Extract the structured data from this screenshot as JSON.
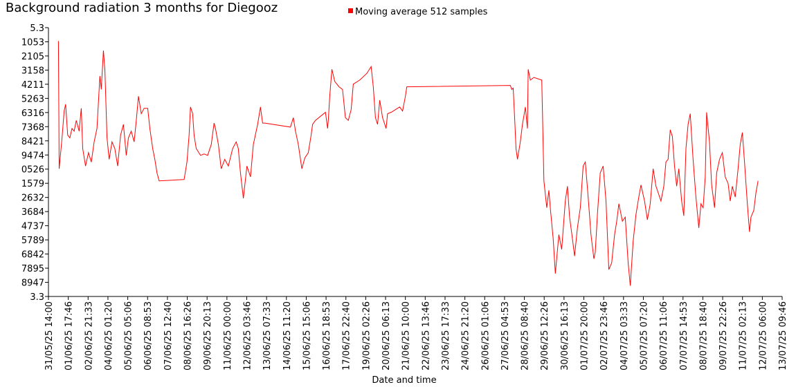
{
  "chart_data": {
    "type": "line",
    "title": "Background radiation 3 months for Diegooz",
    "xlabel": "Date and time",
    "legend": "top",
    "grid": false,
    "xlim": [
      "31/05/25 14:00",
      "13/07/25 09:46"
    ],
    "xticks": [
      "31/05/25 14:00",
      "01/06/25 17:46",
      "02/06/25 21:33",
      "04/06/25 01:20",
      "05/06/25 05:06",
      "06/06/25 08:53",
      "07/06/25 12:40",
      "08/06/25 16:26",
      "09/06/25 20:13",
      "11/06/25 00:00",
      "12/06/25 03:46",
      "13/06/25 07:33",
      "14/06/25 11:20",
      "15/06/25 15:06",
      "16/06/25 18:53",
      "17/06/25 22:40",
      "19/06/25 02:26",
      "20/06/25 06:13",
      "21/06/25 10:00",
      "22/06/25 13:46",
      "23/06/25 17:33",
      "24/06/25 21:20",
      "26/06/25 01:06",
      "27/06/25 04:53",
      "28/06/25 08:40",
      "29/06/25 12:26",
      "30/06/25 16:13",
      "01/07/25 20:00",
      "02/07/25 23:46",
      "04/07/25 03:33",
      "05/07/25 07:20",
      "06/07/25 11:06",
      "07/07/25 14:53",
      "08/07/25 18:40",
      "09/07/25 22:26",
      "11/07/25 02:13",
      "12/07/25 06:00",
      "13/07/25 09:46"
    ],
    "ylim": [
      3.3,
      5.3
    ],
    "yticks": [
      5.3,
      {
        "value": 5.194737,
        "label": "1053"
      },
      {
        "value": 5.089474,
        "label": "2105"
      },
      {
        "value": 4.984211,
        "label": "3158"
      },
      {
        "value": 4.878947,
        "label": "4211"
      },
      {
        "value": 4.773684,
        "label": "5263"
      },
      {
        "value": 4.668421,
        "label": "6316"
      },
      {
        "value": 4.563158,
        "label": "7368"
      },
      {
        "value": 4.457895,
        "label": "8421"
      },
      {
        "value": 4.352632,
        "label": "9474"
      },
      {
        "value": 4.247368,
        "label": "0526"
      },
      {
        "value": 4.142105,
        "label": "1579"
      },
      {
        "value": 4.036842,
        "label": "2632"
      },
      {
        "value": 3.931579,
        "label": "3684"
      },
      {
        "value": 3.826316,
        "label": "4737"
      },
      {
        "value": 3.721053,
        "label": "5789"
      },
      {
        "value": 3.615789,
        "label": "6842"
      },
      {
        "value": 3.510526,
        "label": "7895"
      },
      {
        "value": 3.405263,
        "label": "8947"
      },
      3.3
    ],
    "x": [
      "01/06/25 04:00",
      "01/06/25 05:00",
      "01/06/25 09:00",
      "01/06/25 12:00",
      "01/06/25 14:00",
      "01/06/25 17:00",
      "01/06/25 20:00",
      "01/06/25 23:00",
      "02/06/25 02:00",
      "02/06/25 05:00",
      "02/06/25 09:00",
      "02/06/25 12:00",
      "02/06/25 14:00",
      "02/06/25 18:00",
      "02/06/25 22:00",
      "03/06/25 02:00",
      "03/06/25 06:00",
      "03/06/25 10:00",
      "03/06/25 14:00",
      "03/06/25 16:00",
      "03/06/25 19:00",
      "03/06/25 21:00",
      "04/06/25 00:00",
      "04/06/25 03:00",
      "04/06/25 07:00",
      "04/06/25 11:00",
      "04/06/25 15:00",
      "04/06/25 19:00",
      "04/06/25 23:00",
      "05/06/25 03:00",
      "05/06/25 06:00",
      "05/06/25 10:00",
      "05/06/25 14:00",
      "05/06/25 17:00",
      "05/06/25 20:00",
      "06/06/25 00:00",
      "06/06/25 04:00",
      "06/06/25 09:00",
      "06/06/25 12:00",
      "06/06/25 16:00",
      "06/06/25 19:00",
      "06/06/25 22:00",
      "07/06/25 01:00",
      "08/06/25 12:00",
      "08/06/25 16:00",
      "08/06/25 19:00",
      "08/06/25 21:00",
      "09/06/25 00:00",
      "09/06/25 02:00",
      "09/06/25 05:00",
      "09/06/25 11:00",
      "09/06/25 16:00",
      "09/06/25 21:00",
      "10/06/25 02:00",
      "10/06/25 06:00",
      "10/06/25 08:00",
      "10/06/25 12:00",
      "10/06/25 16:00",
      "10/06/25 21:00",
      "11/06/25 02:00",
      "11/06/25 08:00",
      "11/06/25 13:00",
      "11/06/25 16:00",
      "11/06/25 19:00",
      "11/06/25 23:00",
      "12/06/25 04:00",
      "12/06/25 09:00",
      "12/06/25 13:00",
      "12/06/25 19:00",
      "12/06/25 23:00",
      "13/06/25 02:00",
      "13/06/25 05:00",
      "14/06/25 17:00",
      "14/06/25 21:00",
      "15/06/25 00:00",
      "15/06/25 04:00",
      "15/06/25 07:00",
      "15/06/25 09:00",
      "15/06/25 13:00",
      "15/06/25 18:00",
      "15/06/25 22:00",
      "16/06/25 00:00",
      "16/06/25 04:00",
      "16/06/25 18:00",
      "16/06/25 21:00",
      "16/06/25 22:00",
      "17/06/25 00:00",
      "17/06/25 03:00",
      "17/06/25 07:00",
      "17/06/25 13:00",
      "17/06/25 18:00",
      "17/06/25 22:00",
      "18/06/25 02:00",
      "18/06/25 06:00",
      "18/06/25 09:00",
      "18/06/25 18:00",
      "19/06/25 04:00",
      "19/06/25 10:00",
      "19/06/25 13:00",
      "19/06/25 16:00",
      "19/06/25 19:00",
      "19/06/25 22:00",
      "20/06/25 02:00",
      "20/06/25 07:00",
      "20/06/25 09:00",
      "20/06/25 14:00",
      "21/06/25 02:00",
      "21/06/25 06:00",
      "21/06/25 10:00",
      "21/06/25 12:00",
      "27/06/25 13:00",
      "27/06/25 15:00",
      "27/06/25 17:00",
      "27/06/25 19:00",
      "27/06/25 21:00",
      "27/06/25 23:00",
      "28/06/25 03:00",
      "28/06/25 06:00",
      "28/06/25 10:00",
      "28/06/25 13:00",
      "28/06/25 14:00",
      "28/06/25 17:00",
      "28/06/25 22:00",
      "29/06/25 09:00",
      "29/06/25 12:00",
      "29/06/25 16:00",
      "29/06/25 19:00",
      "29/06/25 21:00",
      "30/06/25 01:00",
      "30/06/25 04:00",
      "30/06/25 09:00",
      "30/06/25 13:00",
      "30/06/25 18:00",
      "30/06/25 21:00",
      "01/07/25 00:00",
      "01/07/25 04:00",
      "01/07/25 07:00",
      "01/07/25 11:00",
      "01/07/25 15:00",
      "01/07/25 19:00",
      "01/07/25 22:00",
      "02/07/25 02:00",
      "02/07/25 06:00",
      "02/07/25 10:00",
      "02/07/25 12:00",
      "02/07/25 15:00",
      "02/07/25 19:00",
      "02/07/25 23:00",
      "03/07/25 03:00",
      "03/07/25 07:00",
      "03/07/25 11:00",
      "03/07/25 15:00",
      "03/07/25 18:00",
      "03/07/25 21:00",
      "04/07/25 02:00",
      "04/07/25 06:00",
      "04/07/25 10:00",
      "04/07/25 13:00",
      "04/07/25 17:00",
      "04/07/25 21:00",
      "05/07/25 01:00",
      "05/07/25 04:00",
      "05/07/25 09:00",
      "05/07/25 13:00",
      "05/07/25 17:00",
      "05/07/25 21:00",
      "06/07/25 01:00",
      "06/07/25 08:00",
      "06/07/25 12:00",
      "06/07/25 15:00",
      "06/07/25 18:00",
      "06/07/25 21:00",
      "07/07/25 00:00",
      "07/07/25 03:00",
      "07/07/25 06:00",
      "07/07/25 09:00",
      "07/07/25 13:00",
      "07/07/25 16:00",
      "07/07/25 19:00",
      "07/07/25 22:00",
      "08/07/25 01:00",
      "08/07/25 05:00",
      "08/07/25 09:00",
      "08/07/25 13:00",
      "08/07/25 16:00",
      "08/07/25 19:00",
      "08/07/25 22:00",
      "09/07/25 00:00",
      "09/07/25 04:00",
      "09/07/25 07:00",
      "09/07/25 11:00",
      "09/07/25 14:00",
      "09/07/25 18:00",
      "09/07/25 22:00",
      "10/07/25 02:00",
      "10/07/25 06:00",
      "10/07/25 09:00",
      "10/07/25 12:00",
      "10/07/25 16:00",
      "10/07/25 20:00",
      "10/07/25 23:00",
      "11/07/25 02:00",
      "11/07/25 05:00",
      "11/07/25 09:00",
      "11/07/25 12:00",
      "11/07/25 14:00",
      "11/07/25 18:00",
      "11/07/25 21:00",
      "12/07/25 00:00"
    ],
    "series": [
      {
        "name": "Moving average 512 samples",
        "color": "#ff0000",
        "values": [
          5.2,
          4.25,
          4.48,
          4.68,
          4.73,
          4.5,
          4.48,
          4.55,
          4.53,
          4.61,
          4.53,
          4.7,
          4.4,
          4.27,
          4.37,
          4.3,
          4.45,
          4.55,
          4.94,
          4.84,
          5.13,
          4.99,
          4.48,
          4.32,
          4.45,
          4.4,
          4.27,
          4.5,
          4.58,
          4.35,
          4.48,
          4.53,
          4.45,
          4.61,
          4.79,
          4.66,
          4.7,
          4.7,
          4.55,
          4.4,
          4.32,
          4.22,
          4.16,
          4.17,
          4.3,
          4.5,
          4.71,
          4.66,
          4.5,
          4.4,
          4.35,
          4.36,
          4.35,
          4.43,
          4.59,
          4.55,
          4.43,
          4.25,
          4.32,
          4.27,
          4.4,
          4.45,
          4.4,
          4.22,
          4.03,
          4.27,
          4.19,
          4.43,
          4.58,
          4.71,
          4.59,
          4.59,
          4.56,
          4.63,
          4.53,
          4.43,
          4.32,
          4.25,
          4.33,
          4.37,
          4.5,
          4.58,
          4.61,
          4.67,
          4.55,
          4.61,
          4.79,
          4.99,
          4.9,
          4.86,
          4.84,
          4.63,
          4.61,
          4.69,
          4.88,
          4.91,
          4.96,
          5.01,
          4.86,
          4.63,
          4.58,
          4.76,
          4.63,
          4.55,
          4.66,
          4.67,
          4.71,
          4.68,
          4.79,
          4.86,
          4.87,
          4.84,
          4.85,
          4.63,
          4.4,
          4.32,
          4.45,
          4.58,
          4.71,
          4.55,
          4.99,
          4.91,
          4.93,
          4.91,
          4.16,
          3.96,
          4.09,
          3.96,
          3.73,
          3.47,
          3.76,
          3.65,
          4.01,
          4.12,
          3.89,
          3.73,
          3.6,
          3.81,
          3.96,
          4.27,
          4.3,
          4.04,
          3.76,
          3.58,
          3.63,
          3.91,
          4.22,
          4.27,
          4.01,
          3.5,
          3.55,
          3.76,
          3.86,
          3.99,
          3.86,
          3.89,
          3.55,
          3.38,
          3.71,
          3.91,
          4.04,
          4.13,
          4.01,
          3.87,
          3.99,
          4.25,
          4.12,
          4.01,
          4.12,
          4.3,
          4.32,
          4.54,
          4.49,
          4.27,
          4.12,
          4.25,
          4.01,
          3.9,
          4.4,
          4.58,
          4.66,
          4.32,
          4.04,
          3.81,
          3.99,
          3.96,
          4.19,
          4.67,
          4.45,
          4.13,
          3.96,
          4.22,
          4.32,
          4.37,
          4.19,
          4.14,
          4.01,
          4.12,
          4.04,
          4.25,
          4.43,
          4.52,
          4.3,
          3.99,
          3.78,
          3.89,
          3.94,
          4.07,
          4.16
        ]
      }
    ]
  }
}
